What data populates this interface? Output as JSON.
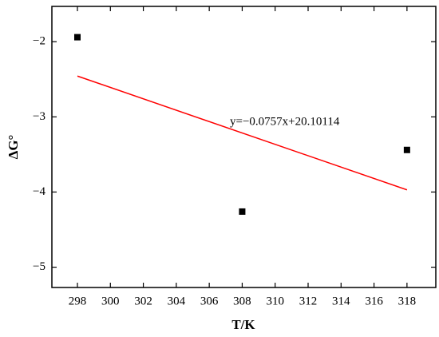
{
  "chart_data": {
    "type": "scatter",
    "xlabel": "T/K",
    "ylabel": "ΔG°",
    "annotation": "y=−0.0757x+20.10114",
    "series": [
      {
        "type": "scatter",
        "color": "#000000",
        "x": [
          298,
          308,
          318
        ],
        "values": [
          -1.94,
          -4.26,
          -3.44
        ]
      },
      {
        "type": "line",
        "color": "#ff0000",
        "x": [
          298,
          318
        ],
        "values": [
          -2.457,
          -3.971
        ]
      }
    ],
    "xlim": [
      296.45,
      319.75
    ],
    "ylim": [
      -5.27,
      -1.53
    ],
    "xticks": [
      298,
      300,
      302,
      304,
      306,
      308,
      310,
      312,
      314,
      316,
      318
    ],
    "yticks": [
      {
        "value": -2,
        "label": "−2"
      },
      {
        "value": -3,
        "label": "−3"
      },
      {
        "value": -4,
        "label": "−4"
      },
      {
        "value": -5,
        "label": "−5"
      }
    ]
  }
}
